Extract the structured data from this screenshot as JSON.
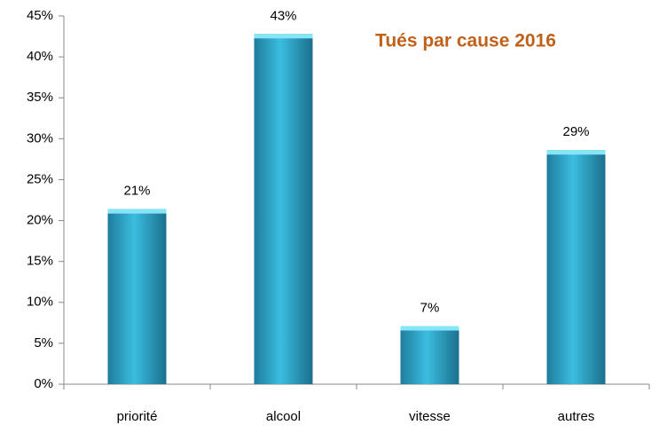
{
  "chart_data": {
    "type": "bar",
    "title": "Tués par cause 2016",
    "title_color": "#c0611b",
    "categories": [
      "priorité",
      "alcool",
      "vitesse",
      "autres"
    ],
    "values": [
      21.4,
      42.8,
      7.1,
      28.6
    ],
    "value_labels": [
      "21%",
      "43%",
      "7%",
      "29%"
    ],
    "color": "#3bbde0",
    "ylim": [
      0,
      45
    ],
    "yticks": [
      {
        "value": 0,
        "label": "0%"
      },
      {
        "value": 5,
        "label": "5%"
      },
      {
        "value": 10,
        "label": "10%"
      },
      {
        "value": 15,
        "label": "15%"
      },
      {
        "value": 20,
        "label": "20%"
      },
      {
        "value": 25,
        "label": "25%"
      },
      {
        "value": 30,
        "label": "30%"
      },
      {
        "value": 35,
        "label": "35%"
      },
      {
        "value": 40,
        "label": "40%"
      },
      {
        "value": 45,
        "label": "45%"
      }
    ],
    "grid": false
  }
}
